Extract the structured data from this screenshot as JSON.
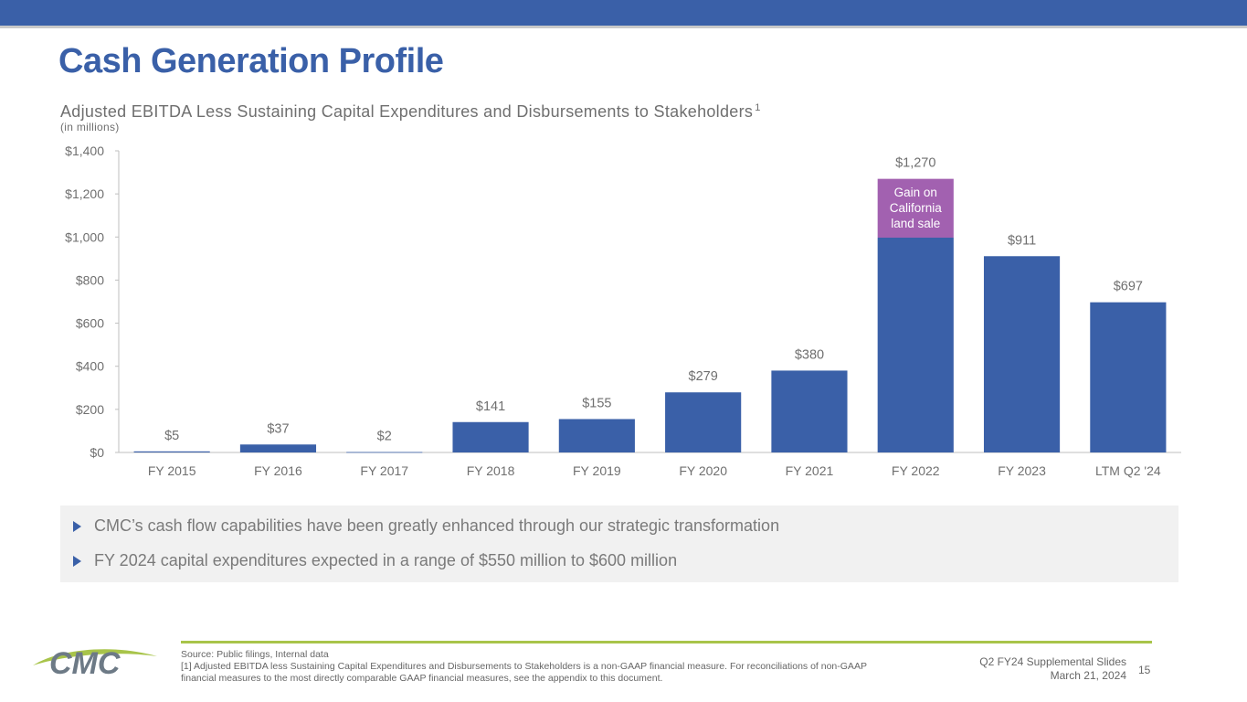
{
  "header": {
    "title": "Cash Generation Profile",
    "subtitle": "Adjusted EBITDA Less Sustaining Capital Expenditures and Disbursements to Stakeholders",
    "subtitle_footnote_marker": "1",
    "units": "(in millions)"
  },
  "colors": {
    "brand_blue": "#3a60a8",
    "gain_purple": "#a261b0",
    "accent_green": "#a8c44a",
    "logo_gray": "#6d7a86"
  },
  "chart_data": {
    "type": "bar",
    "categories": [
      "FY 2015",
      "FY 2016",
      "FY 2017",
      "FY 2018",
      "FY 2019",
      "FY 2020",
      "FY 2021",
      "FY 2022",
      "FY 2023",
      "LTM Q2 '24"
    ],
    "series": [
      {
        "values": [
          5,
          37,
          2,
          141,
          155,
          279,
          380,
          997,
          911,
          697
        ],
        "color": "#3a60a8"
      },
      {
        "values": [
          0,
          0,
          0,
          0,
          0,
          0,
          0,
          273,
          0,
          0
        ],
        "color": "#a261b0",
        "segment_label": "Gain on California land sale"
      }
    ],
    "data_labels": [
      "$5",
      "$37",
      "$2",
      "$141",
      "$155",
      "$279",
      "$380",
      "$1,270",
      "$911",
      "$697"
    ],
    "yticks": [
      0,
      200,
      400,
      600,
      800,
      1000,
      1200,
      1400
    ],
    "ytick_labels": [
      "$0",
      "$200",
      "$400",
      "$600",
      "$800",
      "$1,000",
      "$1,200",
      "$1,400"
    ],
    "ylim": [
      0,
      1400
    ],
    "annotation": "Gain on California land sale",
    "grid": false
  },
  "bullets": [
    "CMC’s cash flow capabilities have been greatly enhanced through our strategic transformation",
    "FY 2024 capital expenditures expected in a range of $550 million to $600 million"
  ],
  "footer": {
    "logo_text": "CMC",
    "source": "Source: Public filings, Internal data",
    "footnote": "[1] Adjusted EBITDA less Sustaining Capital Expenditures and Disbursements to Stakeholders is a non-GAAP financial measure. For reconciliations of non-GAAP financial measures to the most directly comparable GAAP financial measures, see the appendix to this document.",
    "deck_name": "Q2 FY24 Supplemental Slides",
    "date": "March 21, 2024",
    "page_number": "15"
  }
}
